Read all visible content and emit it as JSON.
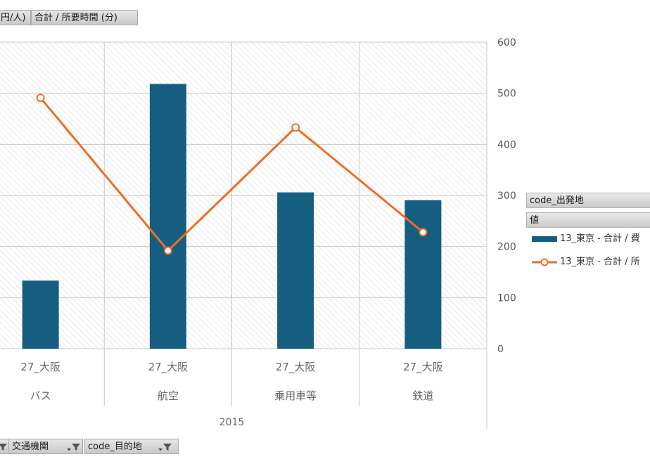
{
  "top_buttons": {
    "cost_label": "円/人)",
    "time_label": "合計 / 所要時間 (分)"
  },
  "bottom_buttons": {
    "transport_label": "交通機関",
    "destination_label": "code_目的地"
  },
  "legend": {
    "header_origin": "code_出発地",
    "header_values": "値",
    "series_bar_label": "13_東京 - 合計 / 費",
    "series_line_label": "13_東京 - 合計 / 所"
  },
  "colors": {
    "bar": "#165e80",
    "line": "#ec6e27",
    "grid": "#c8c8c8",
    "hatch": "#d9d9d9",
    "text": "#555555"
  },
  "chart_data": {
    "type": "bar",
    "year_label": "2015",
    "categories": [
      {
        "destination": "27_大阪",
        "transport": "バス"
      },
      {
        "destination": "27_大阪",
        "transport": "航空"
      },
      {
        "destination": "27_大阪",
        "transport": "乗用車等"
      },
      {
        "destination": "27_大阪",
        "transport": "鉄道"
      }
    ],
    "series": [
      {
        "name": "13_東京 - 合計 / 費",
        "type": "bar",
        "axis": "left",
        "values": [
          4000,
          15550,
          9180,
          8720
        ]
      },
      {
        "name": "13_東京 - 合計 / 所",
        "type": "line",
        "axis": "right",
        "values": [
          491,
          192,
          433,
          228
        ]
      }
    ],
    "right_axis": {
      "ticks": [
        "0",
        "100",
        "200",
        "300",
        "400",
        "500",
        "600"
      ],
      "ylim": [
        0,
        600
      ]
    },
    "left_axis_ylim": [
      0,
      18000
    ],
    "grid": true,
    "legend_position": "right"
  }
}
